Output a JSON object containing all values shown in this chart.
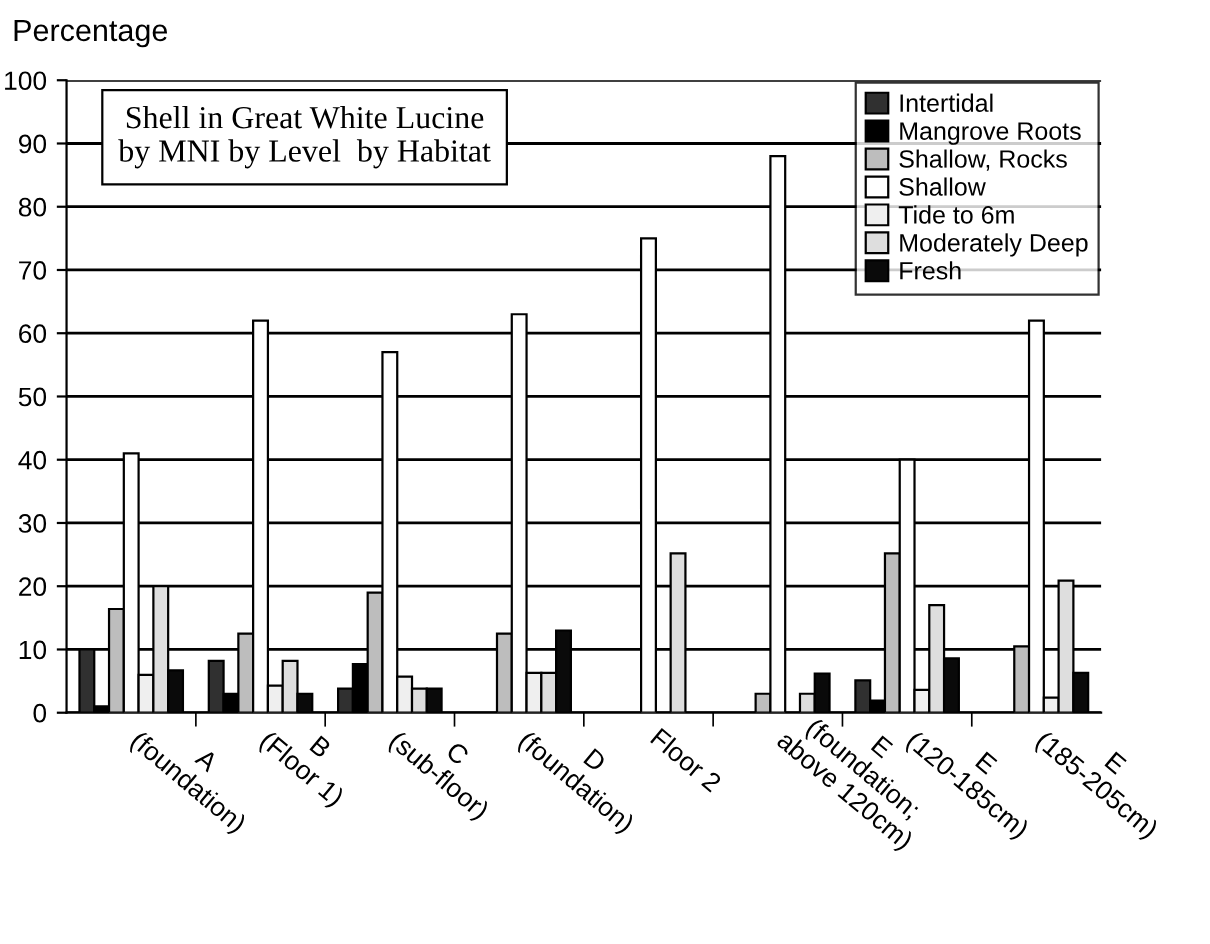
{
  "chart_data": {
    "type": "bar",
    "title": "Shell in Great White Lucine\nby MNI by Level  by Habitat",
    "ylabel": "Percentage",
    "categories": [
      "A\n(foundation)",
      "B\n(Floor 1)",
      "C\n(sub-floor)",
      "D\n(foundation)",
      "Floor 2",
      "E\n(foundation;\nabove 120cm)",
      "E\n(120-185cm)",
      "E\n(185-205cm)"
    ],
    "series": [
      {
        "name": "Intertidal",
        "color": "#303030",
        "values": [
          10,
          8.2,
          3.8,
          null,
          null,
          null,
          5.1,
          null
        ]
      },
      {
        "name": "Mangrove Roots",
        "color": "#000000",
        "values": [
          1,
          3,
          7.7,
          null,
          null,
          null,
          1.9,
          null
        ]
      },
      {
        "name": "Shallow, Rocks",
        "color": "#bdbdbd",
        "values": [
          16.4,
          12.5,
          19,
          12.5,
          null,
          3,
          25.2,
          10.5
        ]
      },
      {
        "name": "Shallow",
        "color": "#ffffff",
        "values": [
          41,
          62,
          57,
          63,
          75,
          88,
          40,
          62
        ]
      },
      {
        "name": "Tide to 6m",
        "color": "#efefef",
        "values": [
          6,
          4.3,
          5.7,
          6.3,
          null,
          null,
          3.6,
          2.4
        ]
      },
      {
        "name": "Moderately Deep",
        "color": "#dedede",
        "values": [
          20,
          8.2,
          3.8,
          6.3,
          25.2,
          3,
          17,
          20.9
        ]
      },
      {
        "name": "Fresh",
        "color": "#0a0a0a",
        "values": [
          6.7,
          3,
          3.8,
          13,
          null,
          6.2,
          8.6,
          6.3
        ]
      }
    ],
    "ylim": [
      0,
      100
    ],
    "yticks": [
      0,
      10,
      20,
      30,
      40,
      50,
      60,
      70,
      80,
      90,
      100
    ],
    "grid": "y",
    "legend": "top right"
  }
}
